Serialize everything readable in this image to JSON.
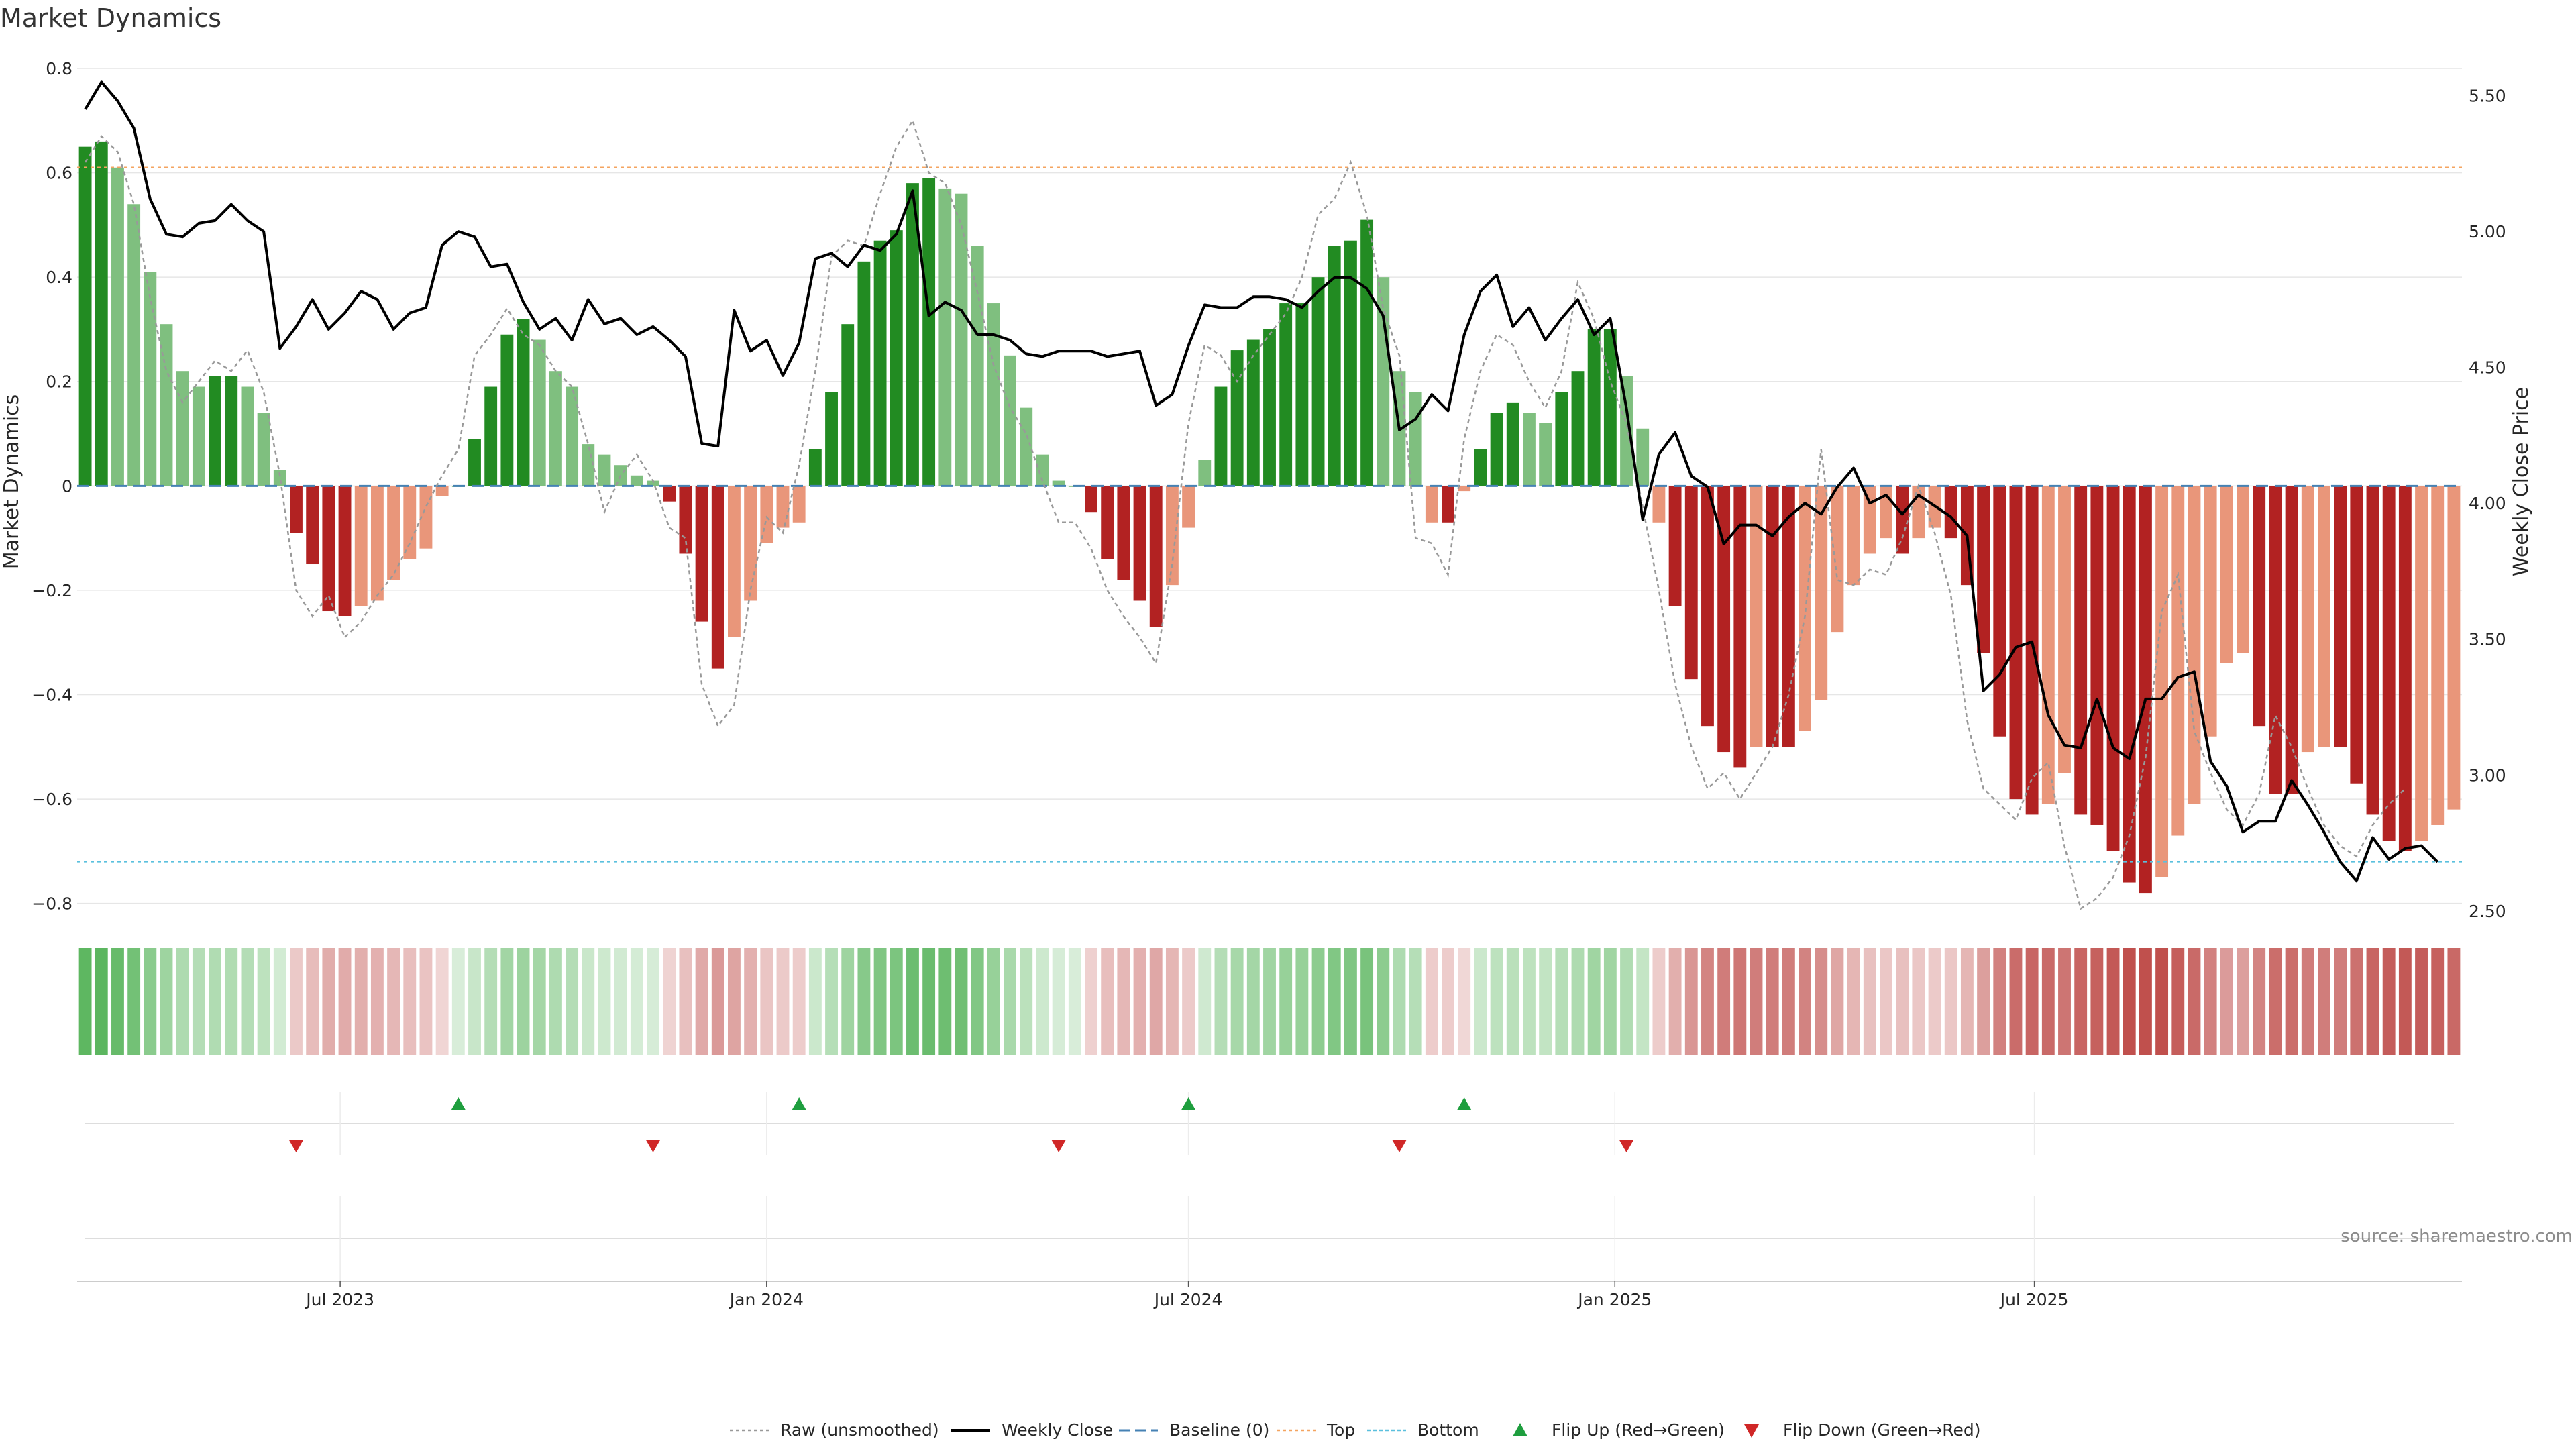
{
  "chart_data": {
    "type": "bar",
    "title": "Market Dynamics",
    "ylabel": "Market Dynamics",
    "y2label": "Weekly Close Price",
    "ylim": [
      -0.83,
      0.8
    ],
    "y2lim": [
      2.47,
      5.6
    ],
    "yticks": [
      0.8,
      0.6,
      0.4,
      0.2,
      0,
      -0.2,
      -0.4,
      -0.6,
      -0.8
    ],
    "ytick_labels": [
      "0.8",
      "0.6",
      "0.4",
      "0.2",
      "0",
      "−0.2",
      "−0.4",
      "−0.6",
      "−0.8"
    ],
    "y2ticks": [
      5.5,
      5.0,
      4.5,
      4.0,
      3.5,
      3.0,
      2.5
    ],
    "y2tick_labels": [
      "5.50",
      "5.00",
      "4.50",
      "4.00",
      "3.50",
      "3.00",
      "2.50"
    ],
    "x_start": "2023-03-13",
    "x_step_days": 7,
    "xticks": [
      {
        "date": "2023-07-01",
        "label": "Jul 2023"
      },
      {
        "date": "2024-01-01",
        "label": "Jan 2024"
      },
      {
        "date": "2024-07-01",
        "label": "Jul 2024"
      },
      {
        "date": "2025-01-01",
        "label": "Jan 2025"
      },
      {
        "date": "2025-07-01",
        "label": "Jul 2025"
      }
    ],
    "top_line": 0.61,
    "bottom_line": -0.72,
    "baseline": 0,
    "dynamics": [
      0.65,
      0.66,
      0.61,
      0.54,
      0.41,
      0.31,
      0.22,
      0.19,
      0.21,
      0.21,
      0.19,
      0.14,
      0.03,
      -0.09,
      -0.15,
      -0.24,
      -0.25,
      -0.23,
      -0.22,
      -0.18,
      -0.14,
      -0.12,
      -0.02,
      0,
      0.09,
      0.19,
      0.29,
      0.32,
      0.28,
      0.22,
      0.19,
      0.08,
      0.06,
      0.04,
      0.02,
      0.01,
      -0.03,
      -0.13,
      -0.26,
      -0.35,
      -0.29,
      -0.22,
      -0.11,
      -0.08,
      -0.07,
      0.07,
      0.18,
      0.31,
      0.43,
      0.47,
      0.49,
      0.58,
      0.59,
      0.57,
      0.56,
      0.46,
      0.35,
      0.25,
      0.15,
      0.06,
      0.01,
      0,
      -0.05,
      -0.14,
      -0.18,
      -0.22,
      -0.27,
      -0.19,
      -0.08,
      0.05,
      0.19,
      0.26,
      0.28,
      0.3,
      0.35,
      0.35,
      0.4,
      0.46,
      0.47,
      0.51,
      0.4,
      0.22,
      0.18,
      -0.07,
      -0.07,
      -0.01,
      0.07,
      0.14,
      0.16,
      0.14,
      0.12,
      0.18,
      0.22,
      0.3,
      0.3,
      0.21,
      0.11,
      -0.07,
      -0.23,
      -0.37,
      -0.46,
      -0.51,
      -0.54,
      -0.5,
      -0.5,
      -0.5,
      -0.47,
      -0.41,
      -0.28,
      -0.19,
      -0.13,
      -0.1,
      -0.13,
      -0.1,
      -0.08,
      -0.1,
      -0.19,
      -0.32,
      -0.48,
      -0.6,
      -0.63,
      -0.61,
      -0.55,
      -0.63,
      -0.65,
      -0.7,
      -0.76,
      -0.78,
      -0.75,
      -0.67,
      -0.61,
      -0.48,
      -0.34,
      -0.32,
      -0.46,
      -0.59,
      -0.59,
      -0.51,
      -0.5,
      -0.5,
      -0.57,
      -0.63,
      -0.68,
      -0.7,
      -0.68,
      -0.65,
      -0.62
    ],
    "raw": [
      0.62,
      0.67,
      0.64,
      0.54,
      0.36,
      0.22,
      0.16,
      0.2,
      0.24,
      0.22,
      0.26,
      0.18,
      0.02,
      -0.2,
      -0.25,
      -0.21,
      -0.29,
      -0.26,
      -0.21,
      -0.17,
      -0.11,
      -0.04,
      0.02,
      0.07,
      0.25,
      0.29,
      0.34,
      0.29,
      0.27,
      0.22,
      0.19,
      0.08,
      -0.05,
      0.02,
      0.06,
      0.01,
      -0.08,
      -0.1,
      -0.38,
      -0.46,
      -0.42,
      -0.2,
      -0.06,
      -0.09,
      0.04,
      0.22,
      0.44,
      0.47,
      0.46,
      0.56,
      0.65,
      0.7,
      0.6,
      0.58,
      0.5,
      0.37,
      0.23,
      0.15,
      0.1,
      0.01,
      -0.07,
      -0.07,
      -0.12,
      -0.2,
      -0.25,
      -0.29,
      -0.34,
      -0.15,
      0.12,
      0.27,
      0.25,
      0.2,
      0.25,
      0.29,
      0.33,
      0.4,
      0.52,
      0.55,
      0.62,
      0.52,
      0.34,
      0.25,
      -0.1,
      -0.11,
      -0.17,
      0.09,
      0.22,
      0.29,
      0.27,
      0.2,
      0.15,
      0.22,
      0.39,
      0.32,
      0.2,
      0.12,
      -0.04,
      -0.2,
      -0.38,
      -0.5,
      -0.58,
      -0.55,
      -0.6,
      -0.55,
      -0.5,
      -0.4,
      -0.25,
      0.07,
      -0.18,
      -0.19,
      -0.16,
      -0.17,
      -0.1,
      0,
      -0.09,
      -0.21,
      -0.45,
      -0.58,
      -0.61,
      -0.64,
      -0.56,
      -0.53,
      -0.69,
      -0.81,
      -0.79,
      -0.75,
      -0.67,
      -0.52,
      -0.24,
      -0.17,
      -0.47,
      -0.55,
      -0.62,
      -0.65,
      -0.59,
      -0.44,
      -0.5,
      -0.58,
      -0.65,
      -0.69,
      -0.71,
      -0.65,
      -0.61,
      -0.58
    ],
    "weekly_close": [
      5.45,
      5.55,
      5.48,
      5.38,
      5.12,
      4.99,
      4.98,
      5.03,
      5.04,
      5.1,
      5.04,
      5.0,
      4.57,
      4.65,
      4.75,
      4.64,
      4.7,
      4.78,
      4.75,
      4.64,
      4.7,
      4.72,
      4.95,
      5.0,
      4.98,
      4.87,
      4.88,
      4.74,
      4.64,
      4.68,
      4.6,
      4.75,
      4.66,
      4.68,
      4.62,
      4.65,
      4.6,
      4.54,
      4.22,
      4.21,
      4.71,
      4.56,
      4.6,
      4.47,
      4.59,
      4.9,
      4.92,
      4.87,
      4.95,
      4.93,
      4.99,
      5.15,
      4.69,
      4.74,
      4.71,
      4.62,
      4.62,
      4.6,
      4.55,
      4.54,
      4.56,
      4.56,
      4.56,
      4.54,
      4.55,
      4.56,
      4.36,
      4.4,
      4.58,
      4.73,
      4.72,
      4.72,
      4.76,
      4.76,
      4.75,
      4.72,
      4.78,
      4.83,
      4.83,
      4.79,
      4.69,
      4.27,
      4.31,
      4.4,
      4.34,
      4.62,
      4.78,
      4.84,
      4.65,
      4.72,
      4.6,
      4.68,
      4.75,
      4.62,
      4.68,
      4.35,
      3.94,
      4.18,
      4.26,
      4.1,
      4.06,
      3.85,
      3.92,
      3.92,
      3.88,
      3.95,
      4.0,
      3.96,
      4.06,
      4.13,
      4.0,
      4.03,
      3.96,
      4.03,
      3.99,
      3.95,
      3.88,
      3.31,
      3.37,
      3.47,
      3.49,
      3.22,
      3.11,
      3.1,
      3.28,
      3.1,
      3.06,
      3.28,
      3.28,
      3.36,
      3.38,
      3.05,
      2.96,
      2.79,
      2.83,
      2.83,
      2.98,
      2.89,
      2.79,
      2.68,
      2.61,
      2.77,
      2.69,
      2.73,
      2.74,
      2.68
    ],
    "flips_up": [
      23,
      44,
      68,
      85
    ],
    "flips_down": [
      13,
      35,
      60,
      81,
      95
    ],
    "series": [
      {
        "name": "Raw (unsmoothed)"
      },
      {
        "name": "Weekly Close"
      },
      {
        "name": "Baseline (0)"
      },
      {
        "name": "Top"
      },
      {
        "name": "Bottom"
      },
      {
        "name": "Flip Up (Red→Green)"
      },
      {
        "name": "Flip Down (Green→Red)"
      }
    ],
    "legend_position": "bottom-center",
    "colors": {
      "green_strong": "#228b22",
      "green_light": "#7fbf7f",
      "red_strong": "#b22222",
      "red_light": "#e9967a",
      "raw_line": "#999999",
      "weekly_close": "#000000",
      "baseline": "#4682b4",
      "top": "#f4a460",
      "bottom": "#5bc0de",
      "flip_up": "#1e9e3e",
      "flip_down": "#d02727",
      "heat_green": "#4caf50",
      "heat_red": "#c0504d"
    }
  },
  "source": "source: sharemaestro.com"
}
